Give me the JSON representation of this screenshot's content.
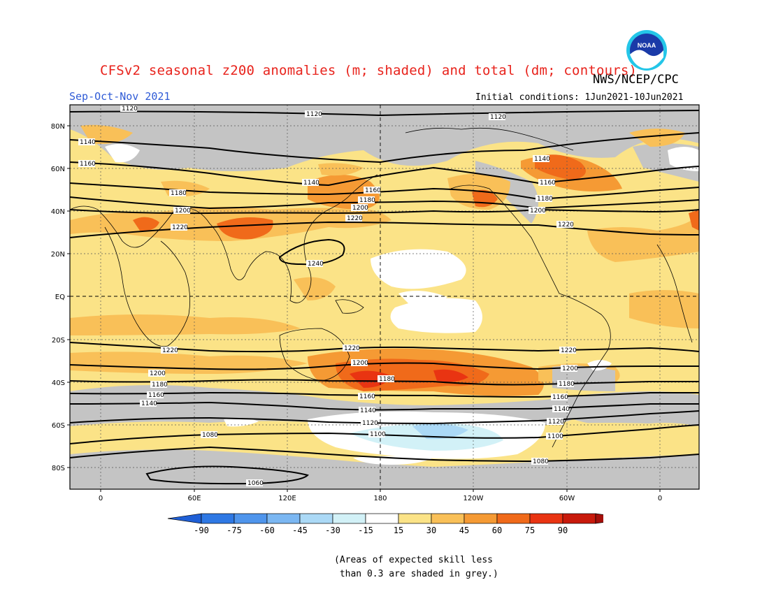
{
  "title": "CFSv2 seasonal z200 anomalies (m; shaded) and total (dm; contours)",
  "credit": "NWS/NCEP/CPC",
  "logo_text": "NOAA",
  "period": "Sep-Oct-Nov 2021",
  "initial_conditions": "Initial conditions: 1Jun2021-10Jun2021",
  "lat_labels": [
    "80N",
    "60N",
    "40N",
    "20N",
    "EQ",
    "20S",
    "40S",
    "60S",
    "80S"
  ],
  "lon_labels": [
    "0",
    "60E",
    "120E",
    "180",
    "120W",
    "60W",
    "0"
  ],
  "contour_labels": {
    "c1120": "1120",
    "c1140": "1140",
    "c1160": "1160",
    "c1180": "1180",
    "c1200": "1200",
    "c1220": "1220",
    "c1240": "1240",
    "c1100": "1100",
    "c1080": "1080",
    "c1060": "1060"
  },
  "colorbar": {
    "ticks": [
      "-90",
      "-75",
      "-60",
      "-45",
      "-30",
      "-15",
      "15",
      "30",
      "45",
      "60",
      "75",
      "90"
    ],
    "colors": [
      "#1f5fd6",
      "#2e78e4",
      "#4f95ec",
      "#7bb7f2",
      "#abd9f6",
      "#d2f1f7",
      "#ffffff",
      "#fbe387",
      "#f9c058",
      "#f59a34",
      "#f06a1a",
      "#e93412",
      "#c81a0c",
      "#a50f0a"
    ]
  },
  "footnote": "(Areas of expected skill less\n than 0.3 are shaded in grey.)",
  "colors": {
    "title": "#e8231c",
    "period": "#2f5bd6",
    "grey_skill": "#c4c4c4",
    "light_yellow": "#fbe387",
    "yellow_orange": "#f9c058",
    "orange": "#f59a34",
    "red_orange": "#f06a1a",
    "red": "#e93412"
  }
}
